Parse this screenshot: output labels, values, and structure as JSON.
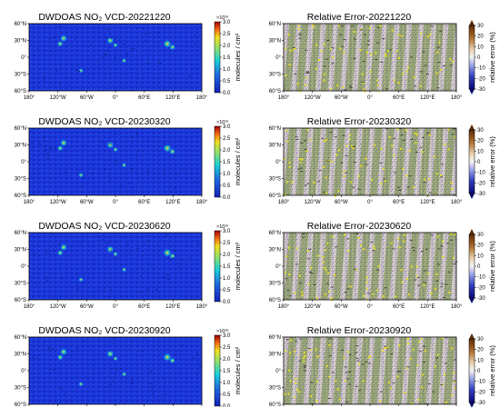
{
  "figure": {
    "panels": [
      {
        "kind": "vcd",
        "title": "DWDOAS NO₂ VCD-20221220",
        "date": "20221220",
        "colorbar": {
          "exponent": "×10¹⁶",
          "label": "molecules / cm²",
          "ticks": [
            "3.0",
            "2.5",
            "2.0",
            "1.5",
            "1.0",
            "0.5",
            "0.0"
          ]
        }
      },
      {
        "kind": "error",
        "title": "Relative Error-20221220",
        "date": "20221220",
        "colorbar": {
          "label": "relative error (%)",
          "ticks": [
            "30",
            "20",
            "10",
            "0",
            "-10",
            "-20",
            "-30"
          ]
        }
      },
      {
        "kind": "vcd",
        "title": "DWDOAS NO₂ VCD-20230320",
        "date": "20230320",
        "colorbar": {
          "exponent": "×10¹⁶",
          "label": "molecules / cm²",
          "ticks": [
            "3.0",
            "2.5",
            "2.0",
            "1.5",
            "1.0",
            "0.5",
            "0.0"
          ]
        }
      },
      {
        "kind": "error",
        "title": "Relative Error-20230320",
        "date": "20230320",
        "colorbar": {
          "label": "relative error (%)",
          "ticks": [
            "30",
            "20",
            "10",
            "0",
            "-10",
            "-20",
            "-30"
          ]
        }
      },
      {
        "kind": "vcd",
        "title": "DWDOAS NO₂ VCD-20230620",
        "date": "20230620",
        "colorbar": {
          "exponent": "×10¹⁶",
          "label": "molecules / cm²",
          "ticks": [
            "3.0",
            "2.5",
            "2.0",
            "1.5",
            "1.0",
            "0.5",
            "0.0"
          ]
        }
      },
      {
        "kind": "error",
        "title": "Relative Error-20230620",
        "date": "20230620",
        "colorbar": {
          "label": "relative error (%)",
          "ticks": [
            "30",
            "20",
            "10",
            "0",
            "-10",
            "-20",
            "-30"
          ]
        }
      },
      {
        "kind": "vcd",
        "title": "DWDOAS NO₂ VCD-20230920",
        "date": "20230920",
        "colorbar": {
          "exponent": "×10¹⁶",
          "label": "molecules / cm²",
          "ticks": [
            "3.0",
            "2.5",
            "2.0",
            "1.5",
            "1.0",
            "0.5",
            "0.0"
          ]
        }
      },
      {
        "kind": "error",
        "title": "Relative Error-20230920",
        "date": "20230920",
        "colorbar": {
          "label": "relative error (%)",
          "ticks": [
            "30",
            "20",
            "10",
            "0",
            "-10",
            "-20",
            "-30"
          ]
        }
      }
    ]
  },
  "chart_data": {
    "type": "heatmap",
    "description_units": {
      "vcd": "molecules / cm²",
      "error": "relative error (%)"
    },
    "lat_ticks": [
      "60°N",
      "30°N",
      "0°",
      "30°S",
      "60°S"
    ],
    "lon_ticks": [
      "180°",
      "120°W",
      "60°W",
      "0°",
      "60°E",
      "120°E",
      "180°"
    ],
    "lat_range": [
      -60,
      60
    ],
    "lon_range": [
      -180,
      180
    ],
    "vcd_range": [
      0.0,
      3.0
    ],
    "vcd_exponent": "×10¹⁶",
    "error_range": [
      -30,
      30
    ],
    "colors": {
      "vcd_low": "#1626c8",
      "vcd_mid": "#19d0d8",
      "vcd_high": "#f0e020",
      "vcd_max": "#a00000",
      "error_low": "#1a1aa0",
      "error_mid": "#f4f4f4",
      "error_high": "#7a3a10"
    }
  }
}
